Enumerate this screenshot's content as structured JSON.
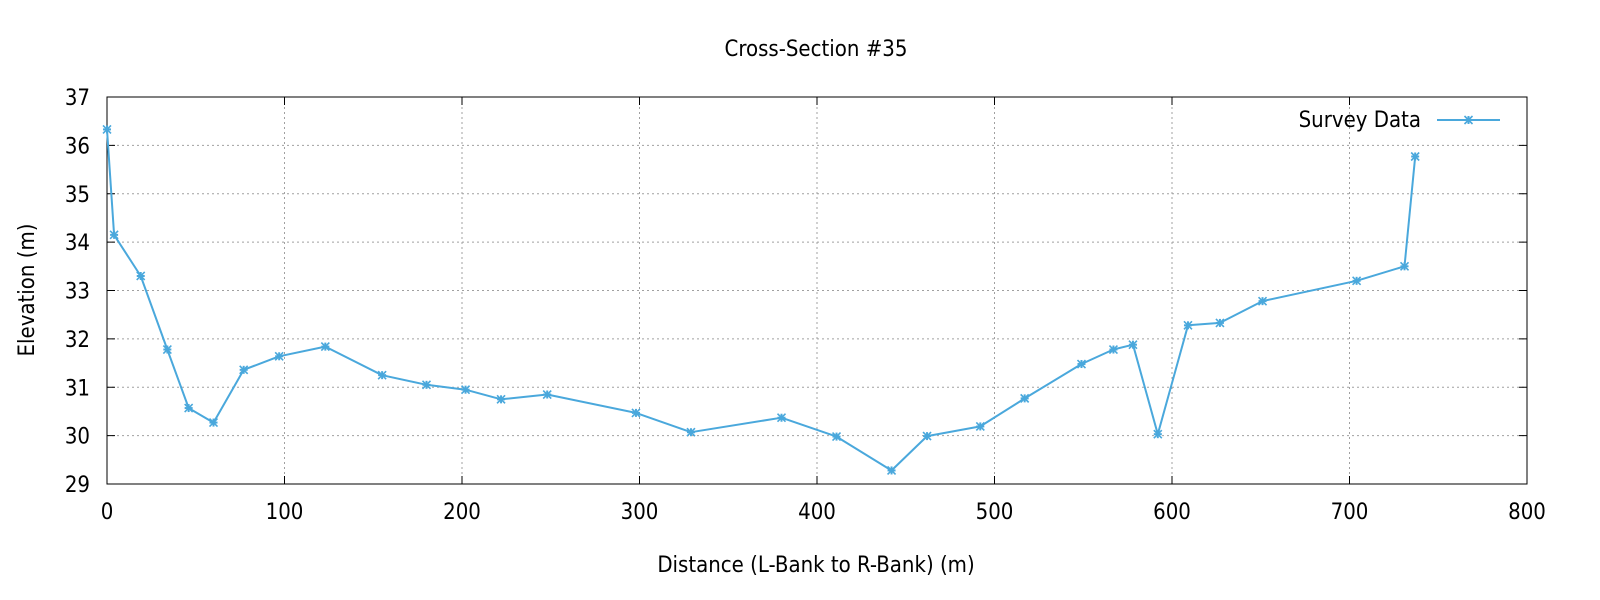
{
  "chart_data": {
    "type": "line",
    "title": "Cross-Section #35",
    "xlabel": "Distance (L-Bank to R-Bank) (m)",
    "ylabel": "Elevation (m)",
    "xlim": [
      0,
      800
    ],
    "ylim": [
      29,
      37
    ],
    "x_ticks": [
      0,
      100,
      200,
      300,
      400,
      500,
      600,
      700,
      800
    ],
    "y_ticks": [
      29,
      30,
      31,
      32,
      33,
      34,
      35,
      36,
      37
    ],
    "grid": true,
    "legend_position": "top-right",
    "series": [
      {
        "name": "Survey Data",
        "color": "#4aa8dc",
        "marker": "star",
        "x": [
          0,
          4,
          19,
          34,
          46,
          60,
          77,
          97,
          123,
          155,
          180,
          202,
          222,
          248,
          298,
          329,
          380,
          411,
          442,
          462,
          492,
          517,
          549,
          567,
          578,
          592,
          609,
          627,
          651,
          704,
          731,
          737
        ],
        "y": [
          36.33,
          34.15,
          33.3,
          31.78,
          30.57,
          30.27,
          31.36,
          31.64,
          31.84,
          31.25,
          31.05,
          30.95,
          30.75,
          30.85,
          30.47,
          30.07,
          30.37,
          29.98,
          29.28,
          29.99,
          30.19,
          30.77,
          31.48,
          31.78,
          31.88,
          30.03,
          32.28,
          32.33,
          32.78,
          33.2,
          33.5,
          35.77
        ]
      }
    ]
  }
}
